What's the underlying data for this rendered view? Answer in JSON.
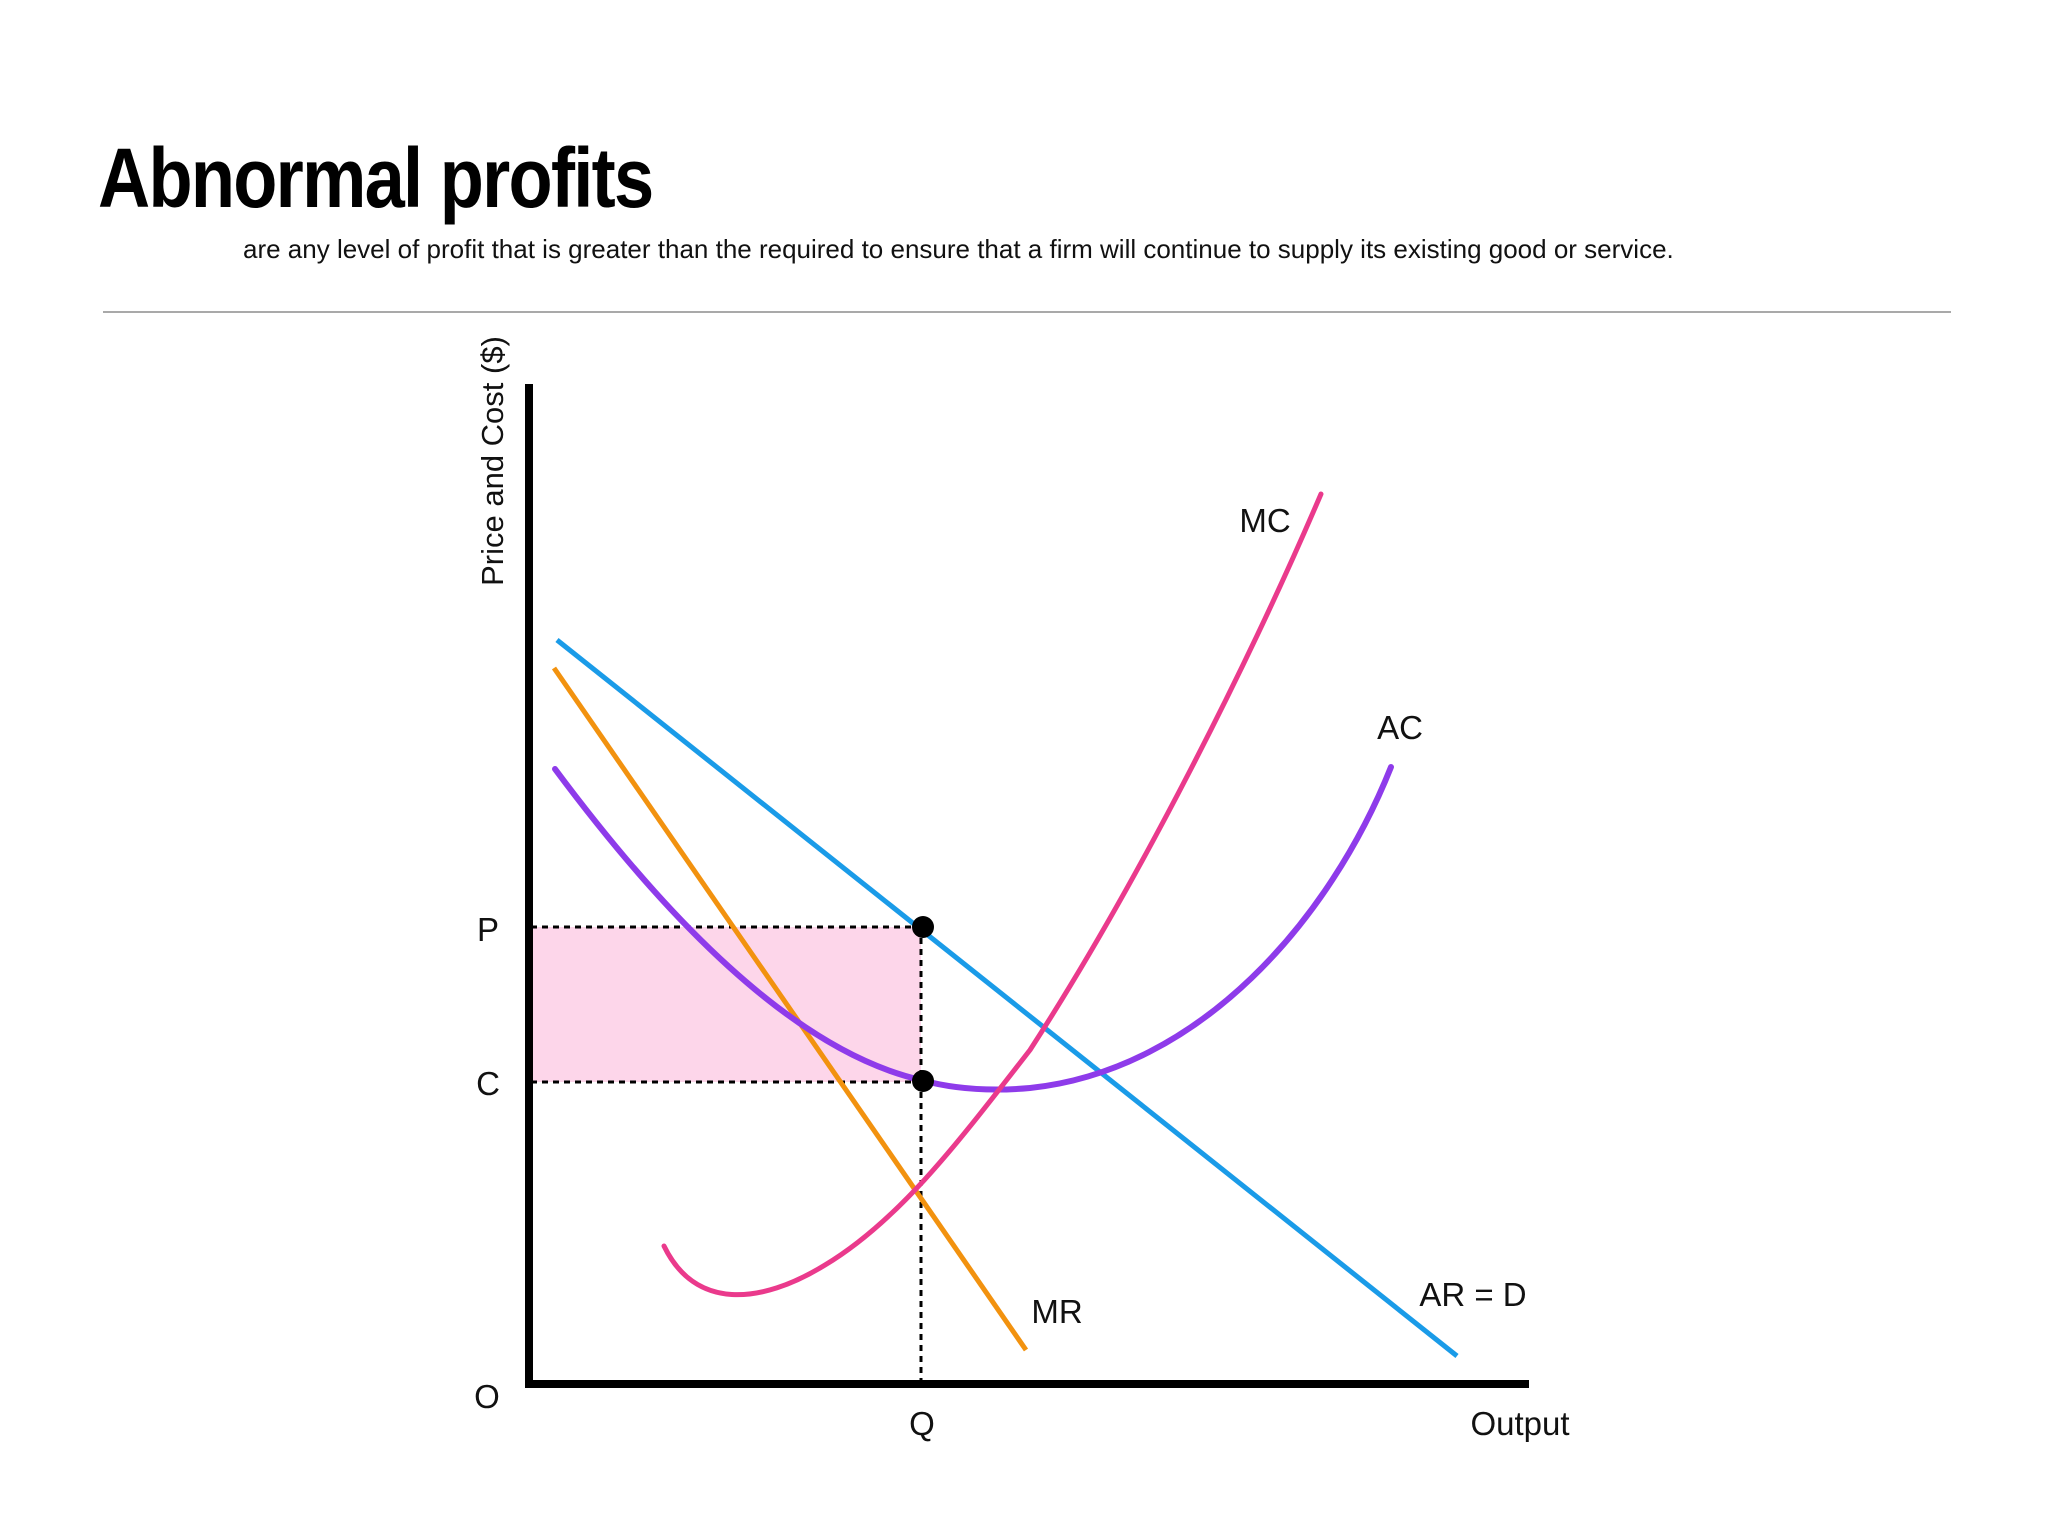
{
  "header": {
    "title": "Abnormal profits",
    "subtitle": "are any level of profit that is greater than the required to ensure that a firm will continue to supply its existing good or service."
  },
  "diagram": {
    "y_axis_label": "Price and Cost ($)",
    "x_axis_label": "Output",
    "origin_label": "O",
    "price_label": "P",
    "cost_label": "C",
    "quantity_label": "Q",
    "curves": {
      "mc": {
        "label": "MC",
        "color": "#ea3a8c"
      },
      "ac": {
        "label": "AC",
        "color": "#8e3bea"
      },
      "mr": {
        "label": "MR",
        "color": "#f2920f"
      },
      "ar": {
        "label": "AR = D",
        "color": "#1a9be8"
      }
    },
    "profit_area_color": "#fdd6ea",
    "axis_color": "#000000"
  }
}
